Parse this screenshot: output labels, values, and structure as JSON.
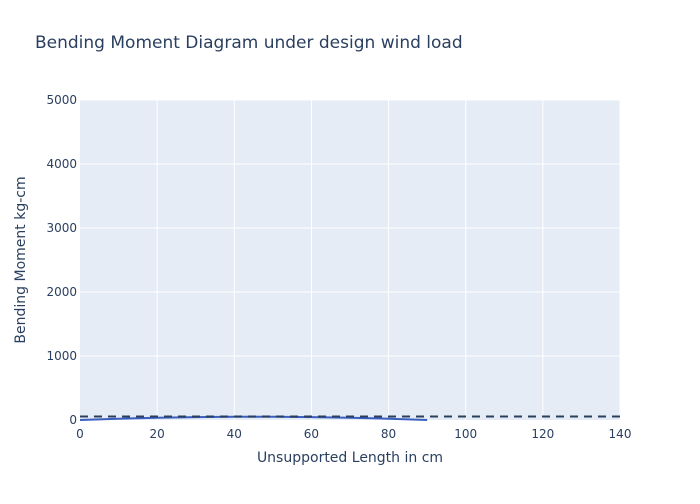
{
  "chart_data": {
    "type": "line",
    "title": "Bending Moment Diagram under design wind load",
    "xlabel": "Unsupported Length in cm",
    "ylabel": "Bending Moment kg-cm",
    "xlim": [
      0,
      140
    ],
    "ylim": [
      0,
      5000
    ],
    "x_ticks": [
      0,
      20,
      40,
      60,
      80,
      100,
      120,
      140
    ],
    "y_ticks": [
      0,
      1000,
      2000,
      3000,
      4000,
      5000
    ],
    "grid": true,
    "series": [
      {
        "style": "solid",
        "color": "#3b5fc0",
        "x": [
          0,
          10,
          20,
          30,
          40,
          45,
          50,
          60,
          70,
          80,
          90
        ],
        "y": [
          0,
          20,
          35,
          45,
          50,
          51,
          50,
          45,
          35,
          20,
          0
        ]
      },
      {
        "style": "dashed",
        "color": "#2a3f5f",
        "x": [
          0,
          140
        ],
        "y": [
          55,
          55
        ]
      }
    ],
    "colors": {
      "plot_background": "#e5ecf6",
      "grid": "#ffffff",
      "text": "#2a3f5f"
    }
  }
}
